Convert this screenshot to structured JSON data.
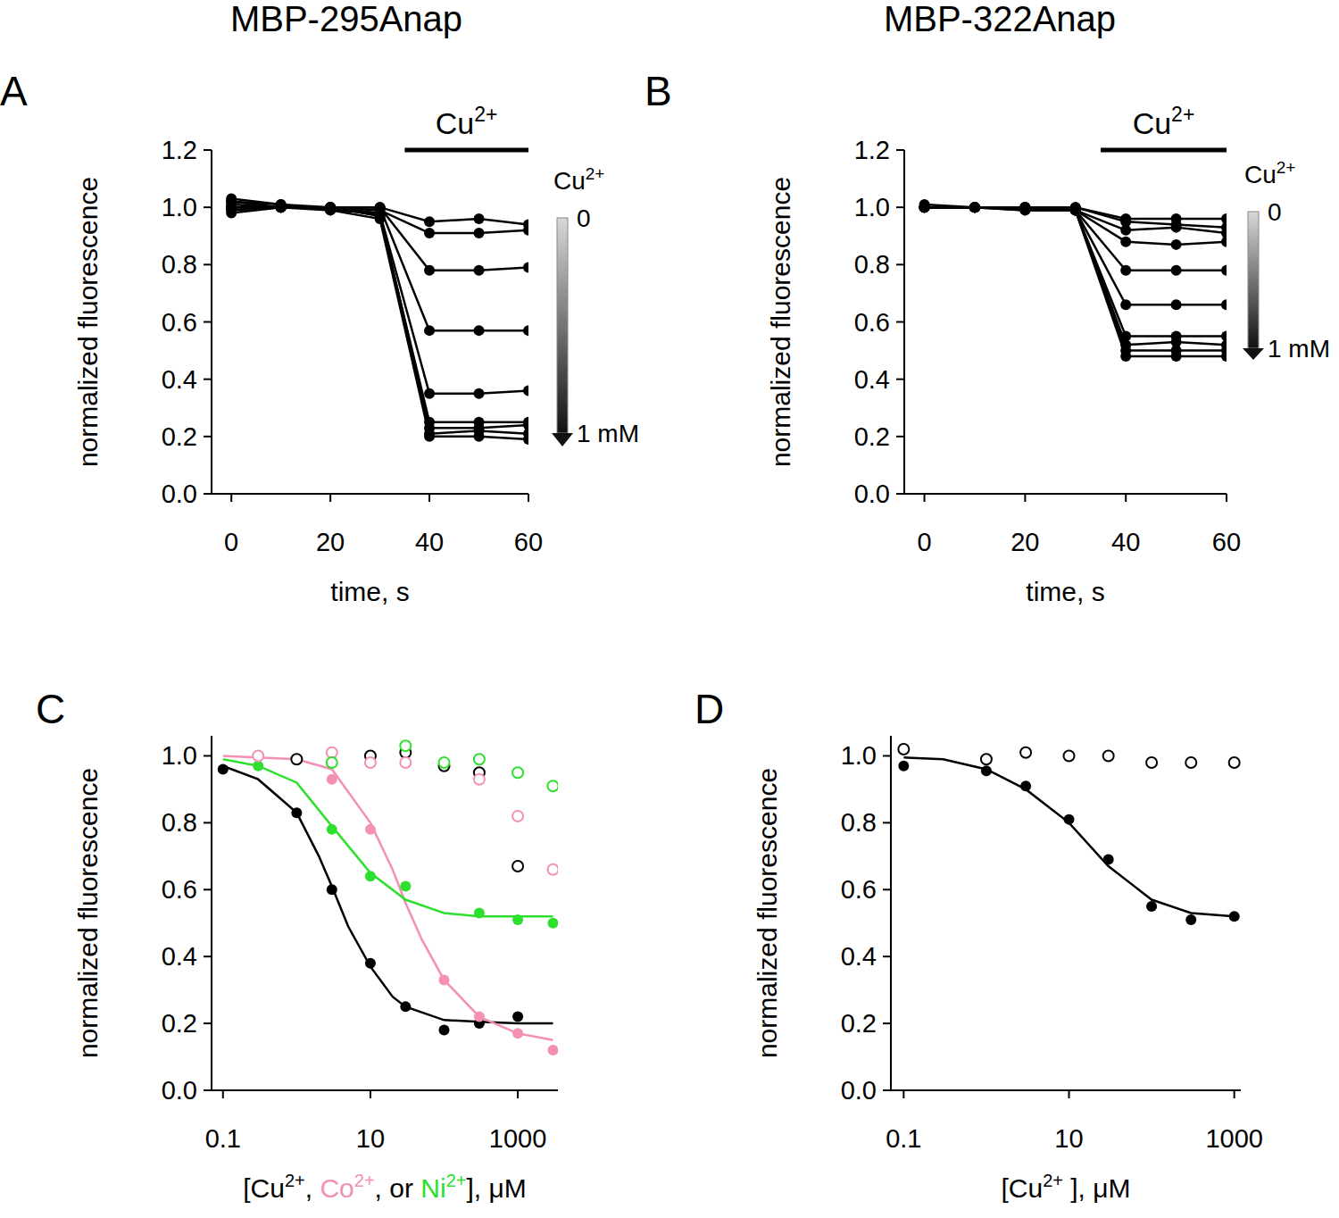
{
  "chart_data": [
    {
      "type": "line",
      "label": "A",
      "title": "MBP-295Anap",
      "x_label": [
        {
          "text": "time, s"
        }
      ],
      "y_label": "normalized fluorescence",
      "xlim": [
        -4,
        60
      ],
      "ylim": [
        0,
        1.2
      ],
      "xticks": [
        0,
        20,
        40,
        60
      ],
      "yticks": [
        {
          "value": 0,
          "label": "0.0"
        },
        0.2,
        0.4,
        0.6,
        0.8,
        {
          "value": 1,
          "label": "1.0"
        },
        1.2
      ],
      "color": "#000000",
      "marker": "circle",
      "x": [
        0,
        10,
        20,
        30,
        40,
        50,
        60
      ],
      "series": [
        {
          "values": [
            1.0,
            1.0,
            1.0,
            1.0,
            0.95,
            0.96,
            0.94
          ]
        },
        {
          "values": [
            1.01,
            1.0,
            1.0,
            0.99,
            0.91,
            0.91,
            0.92
          ]
        },
        {
          "values": [
            1.02,
            1.01,
            1.0,
            1.0,
            0.78,
            0.78,
            0.79
          ]
        },
        {
          "values": [
            0.99,
            1.0,
            1.0,
            1.0,
            0.57,
            0.57,
            0.57
          ]
        },
        {
          "values": [
            1.03,
            1.01,
            0.99,
            0.98,
            0.35,
            0.35,
            0.36
          ]
        },
        {
          "values": [
            1.0,
            1.0,
            1.0,
            0.97,
            0.25,
            0.25,
            0.25
          ]
        },
        {
          "values": [
            0.98,
            1.0,
            1.0,
            0.98,
            0.23,
            0.23,
            0.24
          ]
        },
        {
          "values": [
            1.02,
            1.0,
            1.0,
            0.97,
            0.21,
            0.22,
            0.21
          ]
        },
        {
          "values": [
            1.0,
            1.0,
            0.99,
            0.96,
            0.2,
            0.2,
            0.19
          ]
        }
      ],
      "annotations": [
        {
          "text": "Cu",
          "superscript": "2+",
          "x": [
            35,
            60
          ],
          "y": 1.2
        }
      ],
      "colorbar": {
        "title": {
          "text": "Cu",
          "superscript": "2+"
        },
        "range": [
          0,
          1
        ],
        "ticks": [
          0,
          {
            "value": 1,
            "label": "1 mM"
          }
        ]
      }
    },
    {
      "type": "line",
      "label": "B",
      "title": "MBP-322Anap",
      "x_label": [
        {
          "text": "time, s"
        }
      ],
      "y_label": "normalized fluorescence",
      "xlim": [
        -4,
        60
      ],
      "ylim": [
        0,
        1.2
      ],
      "xticks": [
        0,
        20,
        40,
        60
      ],
      "yticks": [
        {
          "value": 0,
          "label": "0.0"
        },
        0.2,
        0.4,
        0.6,
        0.8,
        {
          "value": 1,
          "label": "1.0"
        },
        1.2
      ],
      "color": "#000000",
      "marker": "circle",
      "x": [
        0,
        10,
        20,
        30,
        40,
        50,
        60
      ],
      "series": [
        {
          "values": [
            1.01,
            1.0,
            1.0,
            1.0,
            0.96,
            0.96,
            0.96
          ]
        },
        {
          "values": [
            1.0,
            1.0,
            1.0,
            1.0,
            0.95,
            0.94,
            0.93
          ]
        },
        {
          "values": [
            1.0,
            1.0,
            1.0,
            0.99,
            0.92,
            0.93,
            0.91
          ]
        },
        {
          "values": [
            1.0,
            1.0,
            0.99,
            0.99,
            0.88,
            0.87,
            0.88
          ]
        },
        {
          "values": [
            1.0,
            1.0,
            1.0,
            0.99,
            0.78,
            0.78,
            0.78
          ]
        },
        {
          "values": [
            1.0,
            1.0,
            1.0,
            0.99,
            0.66,
            0.66,
            0.66
          ]
        },
        {
          "values": [
            1.0,
            1.0,
            1.0,
            0.99,
            0.55,
            0.55,
            0.55
          ]
        },
        {
          "values": [
            1.0,
            1.0,
            1.0,
            0.99,
            0.52,
            0.53,
            0.52
          ]
        },
        {
          "values": [
            1.0,
            1.0,
            1.0,
            0.99,
            0.5,
            0.5,
            0.5
          ]
        },
        {
          "values": [
            1.0,
            1.0,
            0.99,
            0.99,
            0.48,
            0.48,
            0.48
          ]
        }
      ],
      "annotations": [
        {
          "text": "Cu",
          "superscript": "2+",
          "x": [
            35,
            60
          ],
          "y": 1.2
        }
      ],
      "colorbar": {
        "title": {
          "text": "Cu",
          "superscript": "2+"
        },
        "range": [
          0,
          1
        ],
        "ticks": [
          0,
          {
            "value": 1,
            "label": "1 mM"
          }
        ]
      }
    },
    {
      "type": "scatter",
      "label": "C",
      "log": "x",
      "x_label": [
        {
          "text": "[Cu",
          "superscript": "2+"
        },
        {
          "text": ", "
        },
        {
          "text": "Co",
          "superscript": "2+",
          "color": "#f490b4"
        },
        {
          "text": ", or "
        },
        {
          "text": "Ni",
          "superscript": "2+",
          "color": "#2de02d"
        },
        {
          "text": "], μM"
        }
      ],
      "y_label": "normalized fluorescence",
      "xlim": [
        0.07,
        3500
      ],
      "ylim": [
        0,
        1.06
      ],
      "xticks": [
        0.1,
        10,
        1000
      ],
      "yticks": [
        {
          "value": 0,
          "label": "0.0"
        },
        0.2,
        0.4,
        0.6,
        0.8,
        {
          "value": 1,
          "label": "1.0"
        }
      ],
      "series": [
        {
          "type": "line",
          "color": "#000000",
          "x": [
            0.1,
            0.3,
            1,
            2,
            3,
            5,
            10,
            20,
            30,
            100,
            300,
            1000,
            3000
          ],
          "values": [
            0.97,
            0.93,
            0.83,
            0.7,
            0.61,
            0.49,
            0.37,
            0.28,
            0.25,
            0.21,
            0.205,
            0.2,
            0.2
          ]
        },
        {
          "type": "line",
          "color": "#f490b4",
          "x": [
            0.1,
            1,
            3,
            10,
            20,
            30,
            50,
            100,
            300,
            1000,
            3000
          ],
          "values": [
            1.0,
            0.99,
            0.96,
            0.8,
            0.66,
            0.56,
            0.45,
            0.33,
            0.22,
            0.17,
            0.15
          ]
        },
        {
          "type": "line",
          "color": "#2de02d",
          "x": [
            0.1,
            0.3,
            1,
            3,
            10,
            30,
            100,
            300,
            3000
          ],
          "values": [
            0.99,
            0.97,
            0.92,
            0.79,
            0.65,
            0.57,
            0.53,
            0.52,
            0.52
          ]
        },
        {
          "type": "scatter",
          "color": "#000000",
          "marker": "circle",
          "x": [
            0.1,
            1,
            3,
            10,
            30,
            100,
            300,
            1000
          ],
          "values": [
            0.96,
            0.83,
            0.6,
            0.38,
            0.25,
            0.18,
            0.2,
            0.22
          ]
        },
        {
          "type": "scatter",
          "color": "#f490b4",
          "marker": "circle",
          "x": [
            0.3,
            3,
            10,
            100,
            300,
            1000,
            3000
          ],
          "values": [
            1.0,
            0.93,
            0.78,
            0.33,
            0.22,
            0.17,
            0.12
          ]
        },
        {
          "type": "scatter",
          "color": "#2de02d",
          "marker": "circle",
          "x": [
            0.3,
            3,
            10,
            30,
            300,
            1000,
            3000
          ],
          "values": [
            0.97,
            0.78,
            0.64,
            0.61,
            0.53,
            0.51,
            0.5
          ]
        },
        {
          "type": "scatter",
          "color": "#000000",
          "marker": "open_circle",
          "x": [
            1,
            10,
            30,
            100,
            300,
            1000
          ],
          "values": [
            0.99,
            1.0,
            1.01,
            0.97,
            0.95,
            0.67
          ]
        },
        {
          "type": "scatter",
          "color": "#f490b4",
          "marker": "open_circle",
          "x": [
            0.3,
            3,
            10,
            30,
            300,
            1000,
            3000
          ],
          "values": [
            1.0,
            1.01,
            0.98,
            0.98,
            0.93,
            0.82,
            0.66
          ]
        },
        {
          "type": "scatter",
          "color": "#2de02d",
          "marker": "open_circle",
          "x": [
            3,
            30,
            100,
            300,
            1000,
            3000
          ],
          "values": [
            0.98,
            1.03,
            0.98,
            0.99,
            0.95,
            0.91
          ]
        }
      ]
    },
    {
      "type": "scatter",
      "label": "D",
      "log": "x",
      "x_label": [
        {
          "text": "[Cu",
          "superscript": "2+"
        },
        {
          "text": " ], μM"
        }
      ],
      "y_label": "normalized fluorescence",
      "xlim": [
        0.07,
        1200
      ],
      "ylim": [
        0,
        1.06
      ],
      "xticks": [
        0.1,
        10,
        1000
      ],
      "yticks": [
        {
          "value": 0,
          "label": "0.0"
        },
        0.2,
        0.4,
        0.6,
        0.8,
        {
          "value": 1,
          "label": "1.0"
        }
      ],
      "series": [
        {
          "type": "line",
          "color": "#000000",
          "x": [
            0.1,
            0.3,
            1,
            3,
            10,
            30,
            100,
            300,
            1000
          ],
          "values": [
            0.995,
            0.99,
            0.96,
            0.9,
            0.8,
            0.67,
            0.57,
            0.53,
            0.52
          ]
        },
        {
          "type": "scatter",
          "color": "#000000",
          "marker": "circle",
          "x": [
            0.1,
            1,
            3,
            10,
            30,
            100,
            300,
            1000
          ],
          "values": [
            0.97,
            0.955,
            0.91,
            0.81,
            0.69,
            0.55,
            0.51,
            0.52
          ]
        },
        {
          "type": "scatter",
          "color": "#000000",
          "marker": "open_circle",
          "x": [
            0.1,
            1,
            3,
            10,
            30,
            100,
            300,
            1000
          ],
          "values": [
            1.02,
            0.99,
            1.01,
            1.0,
            1.0,
            0.98,
            0.98,
            0.98
          ]
        }
      ]
    }
  ]
}
